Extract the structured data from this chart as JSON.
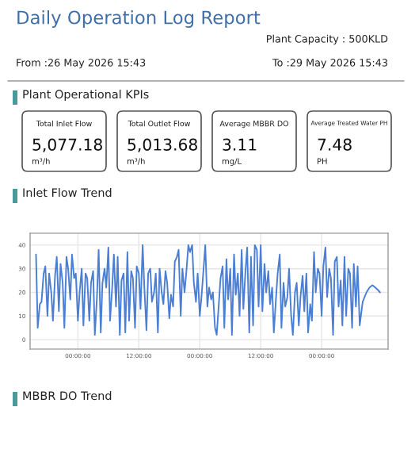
{
  "chart_data": [
    {
      "type": "other",
      "title": "Daily Operation Log Report",
      "annotations": [
        "Plant Capacity : 500KLD",
        "From :26 May 2026 15:43",
        "To :29 May 2026 15:43",
        "Plant Operational KPIs",
        "Total Inlet Flow",
        "5,077.18",
        "m³/h",
        "Total Outlet Flow",
        "5,013.68",
        "m³/h",
        "Average MBBR DO",
        "3.11",
        "mg/L",
        "Average Treated Water PH",
        "7.48",
        "PH"
      ]
    },
    {
      "type": "line",
      "title": "Inlet Flow Trend",
      "x": [
        "2026-05-26T15:45",
        "2026-05-26T16:05",
        "2026-05-26T16:30",
        "2026-05-26T16:50",
        "2026-05-26T17:15",
        "2026-05-26T17:35",
        "2026-05-26T18:00",
        "2026-05-26T18:20",
        "2026-05-26T18:45",
        "2026-05-26T19:05",
        "2026-05-26T19:30",
        "2026-05-26T19:50",
        "2026-05-26T20:15",
        "2026-05-26T20:35",
        "2026-05-26T21:00",
        "2026-05-26T21:20",
        "2026-05-26T21:45",
        "2026-05-26T22:05",
        "2026-05-26T22:30",
        "2026-05-26T22:50",
        "2026-05-26T23:15",
        "2026-05-26T23:35",
        "2026-05-27T00:00",
        "2026-05-27T00:20",
        "2026-05-27T00:45",
        "2026-05-27T01:05",
        "2026-05-27T01:30",
        "2026-05-27T01:50",
        "2026-05-27T02:15",
        "2026-05-27T02:35",
        "2026-05-27T03:00",
        "2026-05-27T03:20",
        "2026-05-27T03:45",
        "2026-05-27T04:05",
        "2026-05-27T04:30",
        "2026-05-27T04:50",
        "2026-05-27T05:15",
        "2026-05-27T05:35",
        "2026-05-27T06:00",
        "2026-05-27T06:20",
        "2026-05-27T06:45",
        "2026-05-27T07:05",
        "2026-05-27T07:30",
        "2026-05-27T07:50",
        "2026-05-27T08:15",
        "2026-05-27T08:35",
        "2026-05-27T09:00",
        "2026-05-27T09:20",
        "2026-05-27T09:45",
        "2026-05-27T10:05",
        "2026-05-27T10:30",
        "2026-05-27T10:50",
        "2026-05-27T11:15",
        "2026-05-27T11:35",
        "2026-05-27T12:00",
        "2026-05-27T12:20",
        "2026-05-27T12:45",
        "2026-05-27T13:05",
        "2026-05-27T13:30",
        "2026-05-27T13:50",
        "2026-05-27T14:15",
        "2026-05-27T14:35",
        "2026-05-27T15:00",
        "2026-05-27T15:20",
        "2026-05-27T15:45",
        "2026-05-27T16:05",
        "2026-05-27T16:30",
        "2026-05-27T16:50",
        "2026-05-27T17:15",
        "2026-05-27T17:35",
        "2026-05-27T18:00",
        "2026-05-27T18:20",
        "2026-05-27T18:45",
        "2026-05-27T19:05",
        "2026-05-27T19:30",
        "2026-05-27T19:50",
        "2026-05-27T20:15",
        "2026-05-27T20:35",
        "2026-05-27T21:00",
        "2026-05-27T21:20",
        "2026-05-27T21:45",
        "2026-05-27T22:05",
        "2026-05-27T22:30",
        "2026-05-27T22:50",
        "2026-05-27T23:15",
        "2026-05-27T23:35",
        "2026-05-28T00:00",
        "2026-05-28T00:20",
        "2026-05-28T00:45",
        "2026-05-28T01:05",
        "2026-05-28T01:30",
        "2026-05-28T01:50",
        "2026-05-28T02:15",
        "2026-05-28T02:35",
        "2026-05-28T03:00",
        "2026-05-28T03:20",
        "2026-05-28T03:45",
        "2026-05-28T04:05",
        "2026-05-28T04:30",
        "2026-05-28T04:50",
        "2026-05-28T05:15",
        "2026-05-28T05:35",
        "2026-05-28T06:00",
        "2026-05-28T06:20",
        "2026-05-28T06:45",
        "2026-05-28T07:05",
        "2026-05-28T07:30",
        "2026-05-28T07:50",
        "2026-05-28T08:15",
        "2026-05-28T08:35",
        "2026-05-28T09:00",
        "2026-05-28T09:20",
        "2026-05-28T09:45",
        "2026-05-28T10:05",
        "2026-05-28T10:30",
        "2026-05-28T10:50",
        "2026-05-28T11:15",
        "2026-05-28T11:35",
        "2026-05-28T12:00",
        "2026-05-28T12:20",
        "2026-05-28T12:45",
        "2026-05-28T13:05",
        "2026-05-28T13:30",
        "2026-05-28T13:50",
        "2026-05-28T14:15",
        "2026-05-28T14:35",
        "2026-05-28T15:00",
        "2026-05-28T15:20",
        "2026-05-28T15:45",
        "2026-05-28T16:05",
        "2026-05-28T16:30",
        "2026-05-28T16:50",
        "2026-05-28T17:15",
        "2026-05-28T17:35",
        "2026-05-28T18:00",
        "2026-05-28T18:20",
        "2026-05-28T18:45",
        "2026-05-28T19:05",
        "2026-05-28T19:30",
        "2026-05-28T19:50",
        "2026-05-28T20:15",
        "2026-05-28T20:35",
        "2026-05-28T21:00",
        "2026-05-28T21:20",
        "2026-05-28T21:45",
        "2026-05-28T22:05",
        "2026-05-28T22:30",
        "2026-05-28T22:50",
        "2026-05-28T23:15",
        "2026-05-28T23:35",
        "2026-05-29T00:00",
        "2026-05-29T00:20",
        "2026-05-29T00:45",
        "2026-05-29T01:05",
        "2026-05-29T01:30",
        "2026-05-29T01:50",
        "2026-05-29T02:15",
        "2026-05-29T02:35",
        "2026-05-29T03:00",
        "2026-05-29T03:20",
        "2026-05-29T03:45",
        "2026-05-29T04:05",
        "2026-05-29T04:30",
        "2026-05-29T04:50",
        "2026-05-29T05:15",
        "2026-05-29T05:35",
        "2026-05-29T06:00",
        "2026-05-29T06:20",
        "2026-05-29T06:45",
        "2026-05-29T07:05",
        "2026-05-29T07:30",
        "2026-05-29T08:05",
        "2026-05-29T08:50",
        "2026-05-29T09:25",
        "2026-05-29T10:00",
        "2026-05-29T10:35",
        "2026-05-29T11:05",
        "2026-05-29T11:30"
      ],
      "series": [
        {
          "color": "#4a7fd4",
          "values": [
            36,
            5,
            15,
            16,
            28,
            31,
            10,
            28,
            20,
            8,
            27,
            35,
            12,
            32,
            24,
            5,
            35,
            30,
            17,
            36,
            26,
            28,
            8,
            20,
            30,
            6,
            28,
            26,
            8,
            24,
            29,
            2,
            18,
            38,
            3,
            24,
            30,
            22,
            39,
            8,
            22,
            36,
            14,
            35,
            2,
            25,
            28,
            3,
            37,
            8,
            29,
            26,
            5,
            31,
            28,
            13,
            40,
            22,
            4,
            28,
            30,
            16,
            20,
            28,
            3,
            30,
            20,
            15,
            29,
            24,
            9,
            19,
            14,
            33,
            35,
            38,
            10,
            30,
            20,
            28,
            40,
            37,
            40,
            24,
            16,
            28,
            10,
            18,
            30,
            40,
            14,
            22,
            17,
            20,
            5,
            2,
            15,
            26,
            31,
            5,
            34,
            17,
            30,
            2,
            36,
            19,
            28,
            10,
            38,
            13,
            29,
            39,
            3,
            35,
            6,
            40,
            38,
            14,
            40,
            12,
            32,
            20,
            29,
            15,
            22,
            3,
            17,
            28,
            36,
            5,
            24,
            14,
            18,
            30,
            10,
            2,
            20,
            24,
            6,
            18,
            27,
            12,
            28,
            3,
            15,
            8,
            37,
            20,
            30,
            28,
            10,
            31,
            39,
            18,
            30,
            26,
            2,
            33,
            35,
            14,
            25,
            6,
            35,
            10,
            30,
            28,
            5,
            32,
            14,
            31,
            6,
            16,
            20,
            22,
            23,
            22,
            21,
            20
          ]
        }
      ],
      "xlim": [
        "2026-05-26T14:35",
        "2026-05-29T13:05"
      ],
      "xticks": [
        {
          "value": "2026-05-27T00:00",
          "label": "00:00:00"
        },
        {
          "value": "2026-05-27T12:00",
          "label": "12:00:00"
        },
        {
          "value": "2026-05-28T00:00",
          "label": "00:00:00"
        },
        {
          "value": "2026-05-28T12:00",
          "label": "12:00:00"
        },
        {
          "value": "2026-05-29T00:00",
          "label": "00:00:00"
        }
      ],
      "ylim": [
        -4,
        45
      ],
      "yticks": [
        0,
        10,
        20,
        30,
        40
      ],
      "grid": true,
      "marker": "none",
      "line_style": "solid"
    },
    {
      "type": "other",
      "title": "MBBR DO Trend"
    }
  ]
}
